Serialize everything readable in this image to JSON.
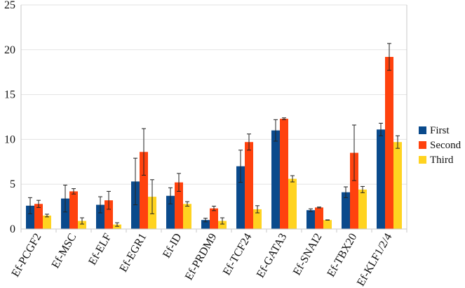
{
  "chart_data": {
    "type": "bar",
    "title": "",
    "xlabel": "",
    "ylabel": "",
    "ylim": [
      0,
      25
    ],
    "yticks": [
      0,
      5,
      10,
      15,
      20,
      25
    ],
    "grid": true,
    "legend_position": "right",
    "categories": [
      "Ef-PCGF2",
      "Ef-MSC",
      "Ef-ELF",
      "Ef-EGR1",
      "Ef-ID",
      "Ef-PRDM9",
      "Ef-TCF24",
      "Ef-GATA3",
      "Ef-SNAI2",
      "Ef-TBX20",
      "Ef-KLF1/2/4"
    ],
    "series": [
      {
        "name": "First",
        "color": "#0a4a8c",
        "values": [
          2.6,
          3.4,
          2.7,
          5.3,
          3.7,
          1.0,
          7.0,
          11.0,
          2.1,
          4.1,
          11.1
        ],
        "errors": [
          0.9,
          1.5,
          0.9,
          2.6,
          0.9,
          0.2,
          1.8,
          1.2,
          0.15,
          0.6,
          0.7
        ]
      },
      {
        "name": "Second",
        "color": "#ff420e",
        "values": [
          2.8,
          4.2,
          3.2,
          8.6,
          5.2,
          2.3,
          9.7,
          12.3,
          2.4,
          8.5,
          19.2
        ],
        "errors": [
          0.4,
          0.3,
          1.0,
          2.6,
          1.0,
          0.25,
          0.9,
          0.1,
          0.05,
          3.1,
          1.5
        ]
      },
      {
        "name": "Third",
        "color": "#ffd320",
        "values": [
          1.5,
          0.9,
          0.5,
          3.6,
          2.8,
          0.9,
          2.2,
          5.6,
          1.0,
          4.4,
          9.7
        ],
        "errors": [
          0.15,
          0.35,
          0.2,
          1.9,
          0.25,
          0.35,
          0.4,
          0.35,
          0.02,
          0.35,
          0.7
        ]
      }
    ]
  }
}
